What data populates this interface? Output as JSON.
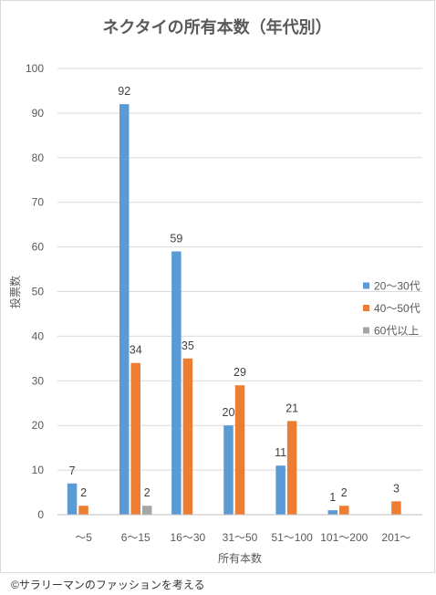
{
  "chart_data": {
    "type": "bar",
    "title": "ネクタイの所有本数（年代別）",
    "xlabel": "所有本数",
    "ylabel": "投票数",
    "categories": [
      "～5",
      "6～15",
      "16～30",
      "31～50",
      "51～100",
      "101～200",
      "201～"
    ],
    "series": [
      {
        "name": "20～30代",
        "color": "#5B9BD5",
        "values": [
          7,
          92,
          59,
          20,
          11,
          1,
          null
        ]
      },
      {
        "name": "40～50代",
        "color": "#ED7D31",
        "values": [
          2,
          34,
          35,
          29,
          21,
          2,
          3
        ]
      },
      {
        "name": "60代以上",
        "color": "#A5A5A5",
        "values": [
          null,
          2,
          null,
          null,
          null,
          null,
          null
        ]
      }
    ],
    "ylim": [
      0,
      100
    ],
    "yticks": [
      0,
      10,
      20,
      30,
      40,
      50,
      60,
      70,
      80,
      90,
      100
    ],
    "grid": true,
    "legend": "right"
  },
  "footer": {
    "copyright": "©サラリーマンのファッションを考える"
  }
}
